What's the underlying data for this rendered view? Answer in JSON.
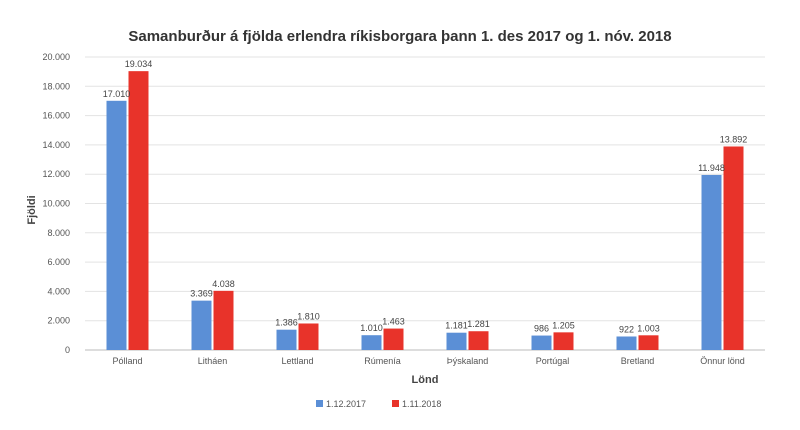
{
  "chart_data": {
    "type": "bar",
    "title": "Samanburður á fjölda erlendra ríkisborgara þann 1. des 2017 og 1. nóv. 2018",
    "xlabel": "Lönd",
    "ylabel": "Fjöldi",
    "ylim": [
      0,
      20000
    ],
    "yticks": [
      "0",
      "2.000",
      "4.000",
      "6.000",
      "8.000",
      "10.000",
      "12.000",
      "14.000",
      "16.000",
      "18.000",
      "20.000"
    ],
    "categories": [
      "Pólland",
      "Litháen",
      "Lettland",
      "Rúmenía",
      "Þýskaland",
      "Portúgal",
      "Bretland",
      "Önnur lönd"
    ],
    "series": [
      {
        "name": "1.12.2017",
        "color": "#5b8fd6",
        "values": [
          17010,
          3369,
          1386,
          1010,
          1181,
          986,
          922,
          11948
        ],
        "labels": [
          "17.010",
          "3.369",
          "1.386",
          "1.010",
          "1.181",
          "986",
          "922",
          "11.948"
        ]
      },
      {
        "name": "1.11.2018",
        "color": "#e8332a",
        "values": [
          19034,
          4038,
          1810,
          1463,
          1281,
          1205,
          1003,
          13892
        ],
        "labels": [
          "19.034",
          "4.038",
          "1.810",
          "1.463",
          "1.281",
          "1.205",
          "1.003",
          "13.892"
        ]
      }
    ],
    "grid": true,
    "legend_position": "bottom"
  }
}
